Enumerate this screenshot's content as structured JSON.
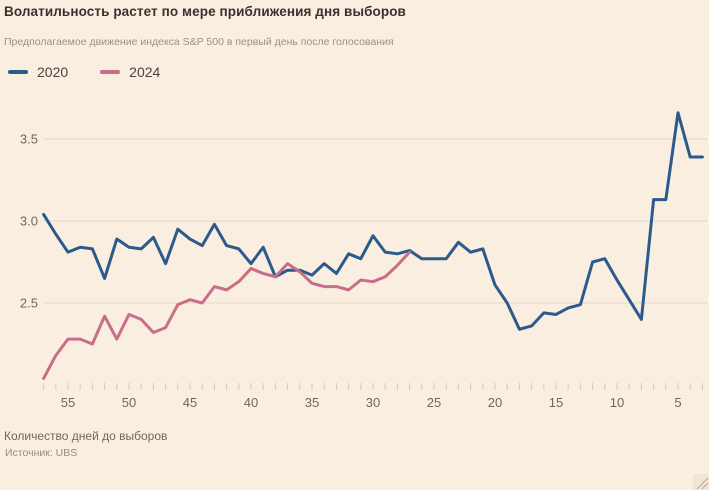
{
  "title": "Волатильность растет по мере приближения дня выборов",
  "subtitle": "Предполагаемое движение индекса S&P 500 в первый день после голосования",
  "legend": {
    "items": [
      {
        "label": "2020",
        "color": "#2B5A8C"
      },
      {
        "label": "2024",
        "color": "#C96E88"
      }
    ]
  },
  "footer": {
    "xaxis_title": "Количество дней до выборов",
    "source": "Источник: UBS"
  },
  "colors": {
    "background": "#FAEEE1",
    "title": "#37322D",
    "subtitle": "#98918A",
    "axis_text": "#6E6862",
    "grid": "#E7D8C9",
    "tick": "#D8C8B8",
    "series_2020": "#2B5A8C",
    "series_2024": "#C96E88",
    "resize_grip": "#B5A89A"
  },
  "chart_data": {
    "type": "line",
    "title": "Волатильность растет по мере приближения дня выборов",
    "subtitle": "Предполагаемое движение индекса S&P 500 в первый день после голосования",
    "xlabel": "Количество дней до выборов",
    "ylabel": "",
    "source": "Источник: UBS",
    "grid": "horizontal only",
    "legend_position": "top-left",
    "x_axis": {
      "note": "days remaining before election, decreasing left to right",
      "range_days": [
        57,
        3
      ],
      "labeled_ticks": [
        55,
        50,
        45,
        40,
        35,
        30,
        25,
        20,
        15,
        10,
        5
      ],
      "minor_tick_every_day": true
    },
    "y_axis": {
      "ticks": [
        3.5,
        3.0,
        2.5
      ],
      "range": [
        2.0,
        3.72
      ]
    },
    "series": [
      {
        "name": "2020",
        "color": "#2B5A8C",
        "days": [
          57,
          56,
          55,
          54,
          53,
          52,
          51,
          50,
          49,
          48,
          47,
          46,
          45,
          44,
          43,
          42,
          41,
          40,
          39,
          38,
          37,
          36,
          35,
          34,
          33,
          32,
          31,
          30,
          29,
          28,
          27,
          26,
          25,
          24,
          23,
          22,
          21,
          20,
          19,
          18,
          17,
          16,
          15,
          14,
          13,
          12,
          11,
          10,
          9,
          8,
          7,
          6,
          5,
          4,
          3
        ],
        "values": [
          3.04,
          2.92,
          2.81,
          2.84,
          2.83,
          2.65,
          2.89,
          2.84,
          2.83,
          2.9,
          2.74,
          2.95,
          2.89,
          2.85,
          2.98,
          2.85,
          2.83,
          2.74,
          2.84,
          2.66,
          2.7,
          2.7,
          2.67,
          2.74,
          2.68,
          2.8,
          2.77,
          2.91,
          2.81,
          2.8,
          2.82,
          2.77,
          2.77,
          2.77,
          2.87,
          2.81,
          2.83,
          2.61,
          2.5,
          2.34,
          2.36,
          2.44,
          2.43,
          2.47,
          2.49,
          2.75,
          2.77,
          2.64,
          2.52,
          2.4,
          3.13,
          3.13,
          3.66,
          3.39,
          3.39
        ]
      },
      {
        "name": "2024",
        "color": "#C96E88",
        "days": [
          57,
          56,
          55,
          54,
          53,
          52,
          51,
          50,
          49,
          48,
          47,
          46,
          45,
          44,
          43,
          42,
          41,
          40,
          39,
          38,
          37,
          36,
          35,
          34,
          33,
          32,
          31,
          30,
          29,
          28,
          27
        ],
        "values": [
          2.04,
          2.18,
          2.28,
          2.28,
          2.25,
          2.42,
          2.28,
          2.43,
          2.4,
          2.32,
          2.35,
          2.49,
          2.52,
          2.5,
          2.6,
          2.58,
          2.63,
          2.71,
          2.68,
          2.66,
          2.74,
          2.69,
          2.62,
          2.6,
          2.6,
          2.58,
          2.64,
          2.63,
          2.66,
          2.73,
          2.81
        ]
      }
    ]
  }
}
